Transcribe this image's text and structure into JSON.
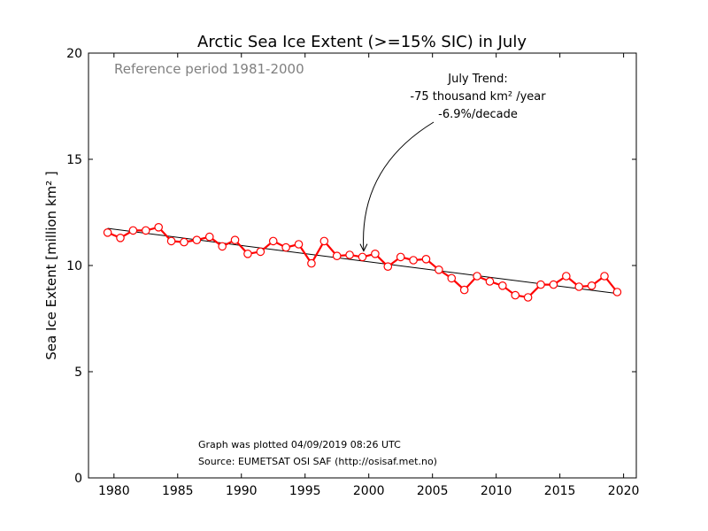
{
  "chart_data": {
    "type": "line",
    "title": "Arctic Sea Ice Extent (>=15% SIC) in July",
    "xlabel": "",
    "ylabel": "Sea Ice Extent [million km² ]",
    "xlim": [
      1978,
      2021
    ],
    "ylim": [
      0,
      20
    ],
    "xticks": [
      1980,
      1985,
      1990,
      1995,
      2000,
      2005,
      2010,
      2015,
      2020
    ],
    "yticks": [
      0,
      5,
      10,
      15,
      20
    ],
    "grid": false,
    "reference_label": "Reference period 1981-2000",
    "trend_annotation": {
      "line1": "July Trend:",
      "line2": "-75 thousand km² /year",
      "line3": "-6.9%/decade",
      "arrow_target": [
        1999.6,
        10.35
      ]
    },
    "footer": {
      "plotted": "Graph was plotted 04/09/2019 08:26 UTC",
      "source": "Source: EUMETSAT OSI SAF (http://osisaf.met.no)"
    },
    "series": [
      {
        "color": "#ff0000",
        "x": [
          1979.5,
          1980.5,
          1981.5,
          1982.5,
          1983.5,
          1984.5,
          1985.5,
          1986.5,
          1987.5,
          1988.5,
          1989.5,
          1990.5,
          1991.5,
          1992.5,
          1993.5,
          1994.5,
          1995.5,
          1996.5,
          1997.5,
          1998.5,
          1999.5,
          2000.5,
          2001.5,
          2002.5,
          2003.5,
          2004.5,
          2005.5,
          2006.5,
          2007.5,
          2008.5,
          2009.5,
          2010.5,
          2011.5,
          2012.5,
          2013.5,
          2014.5,
          2015.5,
          2016.5,
          2017.5,
          2018.5,
          2019.5
        ],
        "y": [
          11.55,
          11.3,
          11.65,
          11.65,
          11.8,
          11.15,
          11.1,
          11.2,
          11.35,
          10.9,
          11.2,
          10.55,
          10.65,
          11.15,
          10.85,
          11.0,
          10.1,
          11.15,
          10.45,
          10.5,
          10.4,
          10.55,
          9.95,
          10.4,
          10.25,
          10.3,
          9.8,
          9.4,
          8.85,
          9.5,
          9.25,
          9.05,
          8.6,
          8.5,
          9.1,
          9.1,
          9.5,
          9.0,
          9.05,
          9.5,
          8.75
        ]
      }
    ],
    "trend_line": {
      "color": "#000000",
      "x": [
        1979.5,
        2019.5
      ],
      "y": [
        11.75,
        8.68
      ]
    }
  }
}
